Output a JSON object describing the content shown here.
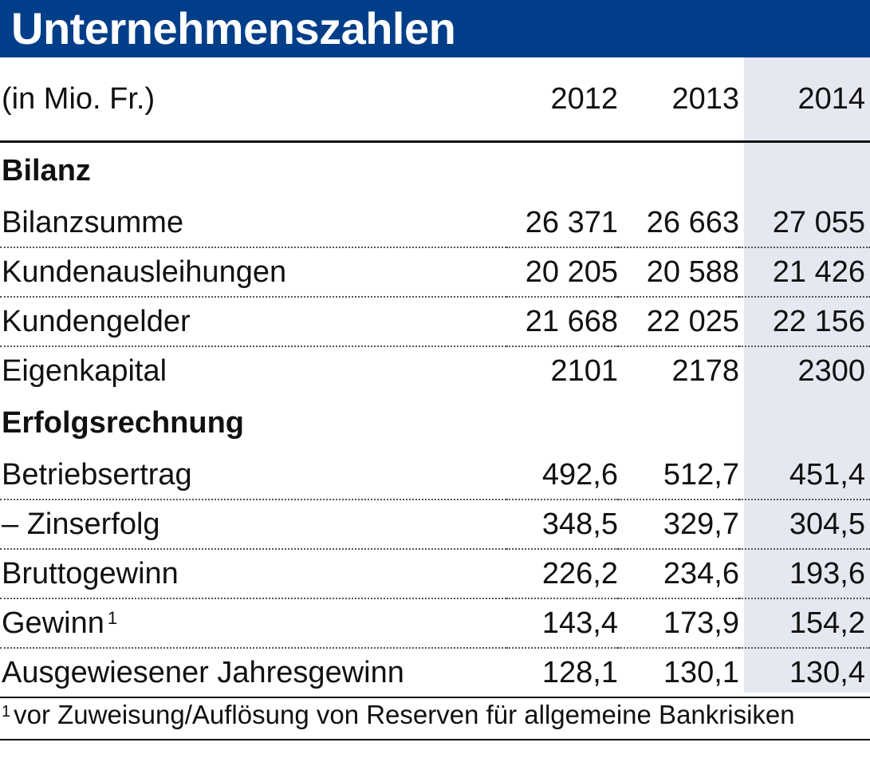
{
  "title": "Unternehmenszahlen",
  "unit_label": "(in Mio. Fr.)",
  "years": [
    "2012",
    "2013",
    "2014"
  ],
  "sections": [
    {
      "heading": "Bilanz",
      "rows": [
        {
          "label": "Bilanzsumme",
          "values": [
            "26 371",
            "26 663",
            "27 055"
          ]
        },
        {
          "label": "Kundenausleihungen",
          "values": [
            "20 205",
            "20 588",
            "21 426"
          ]
        },
        {
          "label": "Kundengelder",
          "values": [
            "21 668",
            "22 025",
            "22 156"
          ]
        },
        {
          "label": "Eigenkapital",
          "values": [
            "2101",
            "2178",
            "2300"
          ]
        }
      ]
    },
    {
      "heading": "Erfolgsrechnung",
      "rows": [
        {
          "label": "Betriebsertrag",
          "values": [
            "492,6",
            "512,7",
            "451,4"
          ]
        },
        {
          "label": "– Zinserfolg",
          "values": [
            "348,5",
            "329,7",
            "304,5"
          ]
        },
        {
          "label": "Bruttogewinn",
          "values": [
            "226,2",
            "234,6",
            "193,6"
          ]
        },
        {
          "label": "Gewinn",
          "footnote_mark": "1",
          "values": [
            "143,4",
            "173,9",
            "154,2"
          ]
        },
        {
          "label": "Ausgewiesener Jahresgewinn",
          "values": [
            "128,1",
            "130,1",
            "130,4"
          ]
        }
      ]
    }
  ],
  "footnote": {
    "mark": "1",
    "text": "vor Zuweisung/Auflösung von Reserven für allgemeine Bankrisiken"
  },
  "colors": {
    "title_bar": "#003e8a",
    "highlight_column": "#e6e8f1"
  }
}
